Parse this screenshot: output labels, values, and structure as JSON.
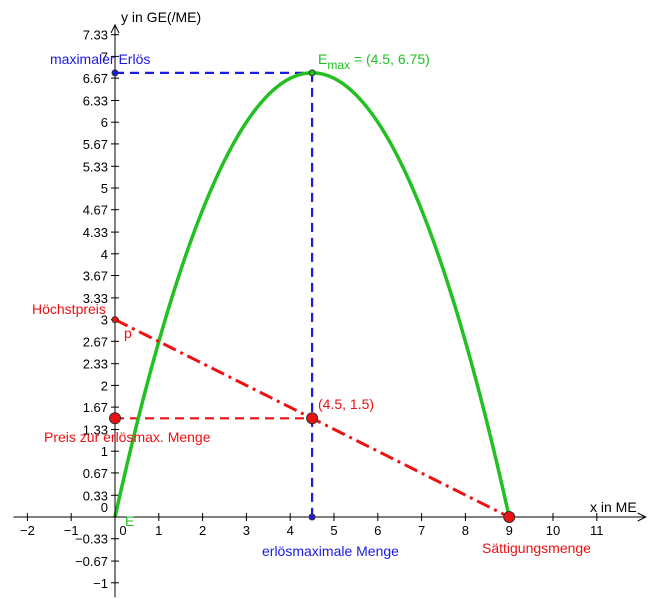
{
  "chart_data": {
    "type": "line",
    "x_axis": {
      "label": "x in ME",
      "range": [
        -2.5,
        12.3
      ],
      "ticks": [
        -2,
        -1,
        0,
        1,
        2,
        3,
        4,
        5,
        6,
        7,
        8,
        9,
        10,
        11
      ],
      "tick_labels": [
        "−2",
        "−1",
        "0",
        "1",
        "2",
        "3",
        "4",
        "5",
        "6",
        "7",
        "8",
        "9",
        "10",
        "11"
      ]
    },
    "y_axis": {
      "label": "y in GE(/ME)",
      "range": [
        -1.25,
        7.6
      ],
      "ticks": [
        -1,
        -0.67,
        -0.33,
        0,
        0.33,
        0.67,
        1,
        1.33,
        1.67,
        2,
        2.33,
        2.67,
        3,
        3.33,
        3.67,
        4,
        4.33,
        4.67,
        5,
        5.33,
        5.67,
        6,
        6.33,
        6.67,
        7,
        7.33
      ],
      "tick_labels": [
        "−1",
        "−0.67",
        "−0.33",
        "0",
        "0.33",
        "0.67",
        "1",
        "1.33",
        "1.67",
        "2",
        "2.33",
        "2.67",
        "3",
        "3.33",
        "3.67",
        "4",
        "4.33",
        "4.67",
        "5",
        "5.33",
        "5.67",
        "6",
        "6.33",
        "6.67",
        "7",
        "7.33"
      ]
    },
    "grid": false,
    "series": [
      {
        "name": "E",
        "kind": "function",
        "color": "#22c022",
        "style": "solid",
        "domain": [
          0,
          9
        ],
        "formula": "3x - x^2/3",
        "x": [
          0,
          1,
          1.5,
          2,
          3,
          4,
          4.5,
          5,
          6,
          7,
          7.5,
          8,
          9
        ],
        "y": [
          0,
          2.67,
          3.75,
          4.67,
          6,
          6.67,
          6.75,
          6.67,
          6,
          4.67,
          3.75,
          2.67,
          0
        ]
      },
      {
        "name": "p",
        "kind": "function",
        "color": "#ee1111",
        "style": "dash-dot",
        "domain": [
          0,
          9
        ],
        "formula": "3 - x/3",
        "x": [
          0,
          4.5,
          9
        ],
        "y": [
          3,
          1.5,
          0
        ]
      }
    ],
    "guides": [
      {
        "color": "#1a1ae6",
        "points": [
          [
            0,
            6.75
          ],
          [
            4.5,
            6.75
          ]
        ]
      },
      {
        "color": "#1a1ae6",
        "points": [
          [
            4.5,
            6.75
          ],
          [
            4.5,
            0
          ]
        ]
      },
      {
        "color": "#ee1111",
        "points": [
          [
            0,
            1.5
          ],
          [
            4.5,
            1.5
          ]
        ]
      }
    ],
    "points": [
      {
        "x": 4.5,
        "y": 6.75,
        "color": "#22c022",
        "size": "small"
      },
      {
        "x": 4.5,
        "y": 0,
        "color": "#1a1ae6",
        "size": "small"
      },
      {
        "x": 0,
        "y": 6.75,
        "color": "#1a1ae6",
        "size": "small"
      },
      {
        "x": 0,
        "y": 3,
        "color": "#ee1111",
        "size": "small"
      },
      {
        "x": 0,
        "y": 1.5,
        "color": "#ee1111",
        "size": "large"
      },
      {
        "x": 4.5,
        "y": 1.5,
        "color": "#ee1111",
        "size": "large"
      },
      {
        "x": 9,
        "y": 0,
        "color": "#ee1111",
        "size": "large"
      }
    ],
    "annotations": [
      {
        "text": "maximaler Erlös",
        "color": "#1a1ae6",
        "anchor": "left-of-y-axis",
        "x": 0,
        "y": 6.75
      },
      {
        "text": "E",
        "sub": "max",
        "rest": " = (4.5, 6.75)",
        "color": "#22c022",
        "x": 4.5,
        "y": 6.75
      },
      {
        "text": "Höchstpreis",
        "color": "#ee1111",
        "anchor": "left-of-y-axis",
        "x": 0,
        "y": 3
      },
      {
        "text": "p",
        "color": "#ee1111",
        "x": 0.35,
        "y": 2.7
      },
      {
        "text": "(4.5, 1.5)",
        "color": "#ee1111",
        "x": 4.5,
        "y": 1.5
      },
      {
        "text": "Preis zur erlösmax. Menge",
        "color": "#ee1111",
        "anchor": "left-of-y-axis",
        "x": 0,
        "y": 1.5
      },
      {
        "text": "E",
        "color": "#22c022",
        "x": 0.2,
        "y": 0
      },
      {
        "text": "erlösmaximale Menge",
        "color": "#1a1ae6",
        "x": 4.5,
        "y": 0
      },
      {
        "text": "Sättigungsmenge",
        "color": "#ee1111",
        "x": 9,
        "y": 0
      }
    ]
  }
}
